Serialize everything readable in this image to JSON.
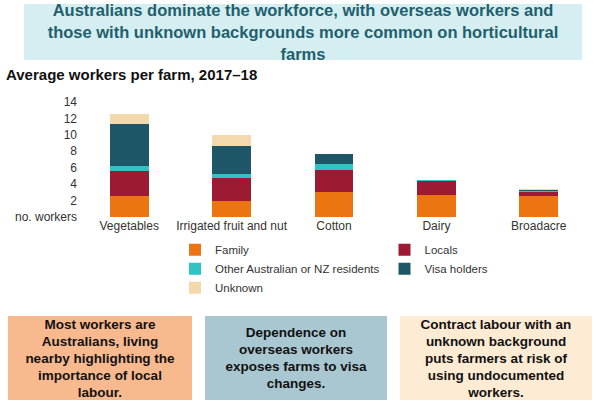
{
  "chart_data": {
    "type": "bar",
    "title": "Australians dominate the workforce, with overseas workers and those with unknown backgrounds more common on horticultural farms",
    "subtitle": "Average workers per farm, 2017–18",
    "categories": [
      "Vegetables",
      "Irrigated fruit and nut",
      "Cotton",
      "Dairy",
      "Broadacre"
    ],
    "series": [
      {
        "name": "Family",
        "color": "#ec7512",
        "values": [
          2.5,
          1.9,
          3.0,
          2.7,
          2.5
        ]
      },
      {
        "name": "Locals",
        "color": "#9c1b32",
        "values": [
          3.1,
          2.8,
          2.7,
          1.7,
          0.6
        ]
      },
      {
        "name": "Other Australian or NZ residents",
        "color": "#2ec4c4",
        "values": [
          0.6,
          0.5,
          0.7,
          0.05,
          0.1
        ]
      },
      {
        "name": "Visa holders",
        "color": "#1d5666",
        "values": [
          5.1,
          3.4,
          1.3,
          0.1,
          0.1
        ]
      },
      {
        "name": "Unknown",
        "color": "#f3d9ab",
        "values": [
          1.2,
          1.4,
          0,
          0,
          0.05
        ]
      }
    ],
    "ylim": [
      0,
      14
    ],
    "yticks": [
      {
        "value": 0,
        "label": "no. workers"
      },
      2,
      4,
      6,
      8,
      10,
      12,
      14
    ],
    "stacked": true,
    "grid": false,
    "legend": "bottom",
    "annotations": [
      "Most workers are Australians, living nearby highlighting the importance of local labour.",
      "Dependence on overseas workers exposes farms to visa changes.",
      "Contract labour with an unknown background puts farmers at risk of using undocumented workers."
    ]
  }
}
